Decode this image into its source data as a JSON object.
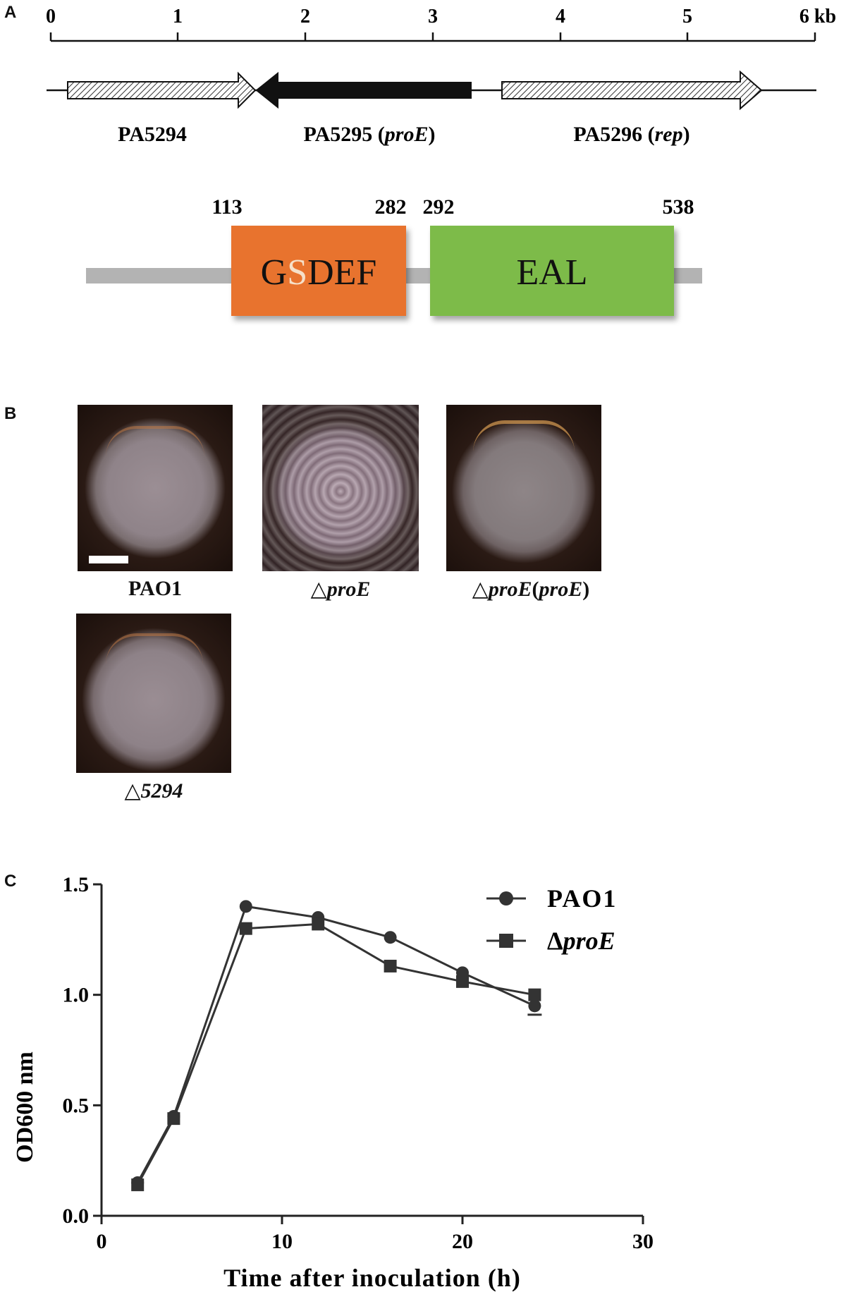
{
  "panels": {
    "a": "A",
    "b": "B",
    "c": "C"
  },
  "gene_map": {
    "scale_ticks": [
      "0",
      "1",
      "2",
      "3",
      "4",
      "5",
      "6 kb"
    ],
    "genes": [
      {
        "name": "PA5294",
        "italic_part": "",
        "suffix": ""
      },
      {
        "name": "PA5295 (",
        "italic_part": "proE",
        "suffix": ")"
      },
      {
        "name": "PA5296 (",
        "italic_part": "rep",
        "suffix": ")"
      }
    ]
  },
  "domains": {
    "positions": [
      "113",
      "282",
      "292",
      "538"
    ],
    "gsdef": {
      "prefix": "G",
      "highlight": "S",
      "suffix": "DEF",
      "highlight_color": "#f6e0c8",
      "color": "#e8732f"
    },
    "eal": {
      "label": "EAL",
      "color": "#7dbb4a"
    }
  },
  "colonies": [
    {
      "delta": "",
      "italic": "",
      "plain": "PAO1",
      "rest": "",
      "bold_plain": true
    },
    {
      "delta": "△",
      "italic": "proE",
      "plain": "",
      "rest": ""
    },
    {
      "delta": "△",
      "italic": "proE",
      "plain": "(",
      "italic2": "proE",
      "rest": ")"
    },
    {
      "delta": "△",
      "italic": "5294",
      "plain": "",
      "rest": ""
    }
  ],
  "chart_data": {
    "type": "line",
    "xlabel": "Time after inoculation (h)",
    "ylabel": "OD600 nm",
    "xlim": [
      0,
      30
    ],
    "ylim": [
      0,
      1.5
    ],
    "xticks": [
      "0",
      "10",
      "20",
      "30"
    ],
    "yticks": [
      "0.0",
      "0.5",
      "1.0",
      "1.5"
    ],
    "legend_position": "top-right",
    "series": [
      {
        "name": "PAO1",
        "marker": "circle",
        "x": [
          2,
          4,
          8,
          12,
          16,
          20,
          24
        ],
        "y": [
          0.15,
          0.45,
          1.4,
          1.35,
          1.26,
          1.1,
          0.95
        ]
      },
      {
        "name": "ΔproE",
        "marker": "square",
        "x": [
          2,
          4,
          8,
          12,
          16,
          20,
          24
        ],
        "y": [
          0.14,
          0.44,
          1.3,
          1.32,
          1.13,
          1.06,
          1.0
        ]
      }
    ],
    "legend": [
      {
        "label": "PAO1",
        "italic_part": ""
      },
      {
        "label": "Δ",
        "italic_part": "proE"
      }
    ]
  }
}
